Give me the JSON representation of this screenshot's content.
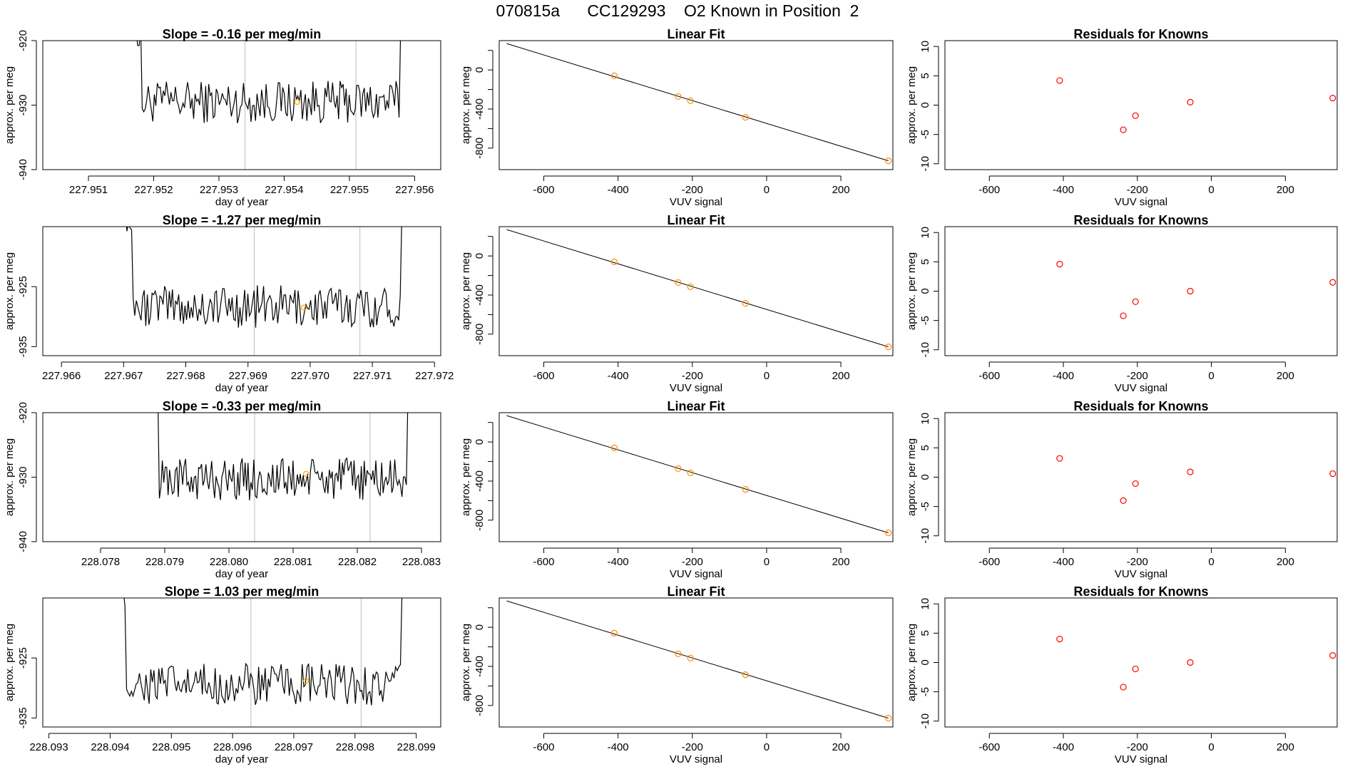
{
  "title": "070815a      CC129293    O2 Known in Position  2",
  "colors": {
    "line": "#000000",
    "grid": "#bebebe",
    "fit_point": "#ff8c00",
    "residual_point": "#ff0000",
    "marker": "#ffa500"
  },
  "chart_data": [
    {
      "type": "line",
      "row": 0,
      "title": "Slope =  -0.16  per meg/min",
      "xlabel": "day of year",
      "ylabel": "approx. per meg",
      "xlim": [
        227.9503,
        227.9564
      ],
      "ylim": [
        -940,
        -920
      ],
      "xticks": [
        227.951,
        227.952,
        227.953,
        227.954,
        227.955,
        227.956
      ],
      "yticks": [
        -940,
        -930,
        -920
      ],
      "ytick_labels": [
        "-940",
        "-930",
        "-920"
      ],
      "series_range": [
        227.9515,
        227.9559
      ],
      "vlines": [
        227.9534,
        227.9551
      ],
      "marker": [
        227.9542,
        -929.5
      ],
      "baseline": -929.5
    },
    {
      "type": "line",
      "row": 1,
      "title": "Slope =  -1.27  per meg/min",
      "xlabel": "day of year",
      "ylabel": "approx. per meg",
      "xlim": [
        227.9657,
        227.9721
      ],
      "ylim": [
        -936.5,
        -915
      ],
      "xticks": [
        227.966,
        227.967,
        227.968,
        227.969,
        227.97,
        227.971,
        227.972
      ],
      "yticks": [
        -935,
        -925
      ],
      "ytick_labels": [
        "-935",
        "-925"
      ],
      "series_range": [
        227.9668,
        227.9716
      ],
      "vlines": [
        227.9691,
        227.9708
      ],
      "marker": [
        227.9699,
        -928.5
      ],
      "baseline": -928.3
    },
    {
      "type": "line",
      "row": 2,
      "title": "Slope =  -0.33  per meg/min",
      "xlabel": "day of year",
      "ylabel": "approx. per meg",
      "xlim": [
        228.0771,
        228.0833
      ],
      "ylim": [
        -940,
        -920
      ],
      "xticks": [
        228.078,
        228.079,
        228.08,
        228.081,
        228.082,
        228.083
      ],
      "yticks": [
        -940,
        -930,
        -920
      ],
      "ytick_labels": [
        "-940",
        "-930",
        "-920"
      ],
      "series_range": [
        228.0786,
        228.0829
      ],
      "vlines": [
        228.0804,
        228.0822
      ],
      "marker": [
        228.0812,
        -929.5
      ],
      "baseline": -930.3
    },
    {
      "type": "line",
      "row": 3,
      "title": "Slope =  1.03  per meg/min",
      "xlabel": "day of year",
      "ylabel": "approx. per meg",
      "xlim": [
        228.0929,
        228.0994
      ],
      "ylim": [
        -936.5,
        -915
      ],
      "xticks": [
        228.093,
        228.094,
        228.095,
        228.096,
        228.097,
        228.098,
        228.099
      ],
      "yticks": [
        -935,
        -925
      ],
      "ytick_labels": [
        "-935",
        "-925"
      ],
      "series_range": [
        228.0939,
        228.0989
      ],
      "vlines": [
        228.0963,
        228.0981
      ],
      "marker": [
        228.0972,
        -928.8
      ],
      "baseline": -929.5
    },
    {
      "type": "scatter",
      "row": 0,
      "title": "Linear Fit",
      "xlabel": "VUV signal",
      "ylabel": "approx. per meg",
      "xlim": [
        -720,
        340
      ],
      "ylim": [
        -1020,
        300
      ],
      "xticks": [
        -600,
        -400,
        -200,
        0,
        200
      ],
      "ytick_labels_at": [
        0,
        -400,
        -800
      ],
      "ytick_labels": [
        "0",
        "-400",
        "-800"
      ],
      "yticks": [
        200,
        0,
        -200,
        -400,
        -600,
        -800
      ],
      "points": [
        [
          -410,
          -60
        ],
        [
          -238,
          -272
        ],
        [
          -205,
          -315
        ],
        [
          -57,
          -485
        ],
        [
          328,
          -930
        ]
      ],
      "fit_line": [
        [
          -700,
          270
        ],
        [
          328,
          -930
        ]
      ]
    },
    {
      "type": "scatter",
      "row": 1,
      "title": "Linear Fit",
      "xlabel": "VUV signal",
      "ylabel": "approx. per meg",
      "xlim": [
        -720,
        340
      ],
      "ylim": [
        -1020,
        300
      ],
      "xticks": [
        -600,
        -400,
        -200,
        0,
        200
      ],
      "ytick_labels_at": [
        0,
        -400,
        -800
      ],
      "ytick_labels": [
        "0",
        "-400",
        "-800"
      ],
      "yticks": [
        200,
        0,
        -200,
        -400,
        -600,
        -800
      ],
      "points": [
        [
          -410,
          -60
        ],
        [
          -238,
          -272
        ],
        [
          -205,
          -315
        ],
        [
          -57,
          -485
        ],
        [
          328,
          -930
        ]
      ],
      "fit_line": [
        [
          -700,
          270
        ],
        [
          328,
          -930
        ]
      ]
    },
    {
      "type": "scatter",
      "row": 2,
      "title": "Linear Fit",
      "xlabel": "VUV signal",
      "ylabel": "approx. per meg",
      "xlim": [
        -720,
        340
      ],
      "ylim": [
        -1020,
        300
      ],
      "xticks": [
        -600,
        -400,
        -200,
        0,
        200
      ],
      "ytick_labels_at": [
        0,
        -400,
        -800
      ],
      "ytick_labels": [
        "0",
        "-400",
        "-800"
      ],
      "yticks": [
        200,
        0,
        -200,
        -400,
        -600,
        -800
      ],
      "points": [
        [
          -410,
          -60
        ],
        [
          -238,
          -272
        ],
        [
          -205,
          -315
        ],
        [
          -57,
          -485
        ],
        [
          328,
          -930
        ]
      ],
      "fit_line": [
        [
          -700,
          270
        ],
        [
          328,
          -930
        ]
      ]
    },
    {
      "type": "scatter",
      "row": 3,
      "title": "Linear Fit",
      "xlabel": "VUV signal",
      "ylabel": "approx. per meg",
      "xlim": [
        -720,
        340
      ],
      "ylim": [
        -1020,
        300
      ],
      "xticks": [
        -600,
        -400,
        -200,
        0,
        200
      ],
      "ytick_labels_at": [
        0,
        -400,
        -800
      ],
      "ytick_labels": [
        "0",
        "-400",
        "-800"
      ],
      "yticks": [
        200,
        0,
        -200,
        -400,
        -600,
        -800
      ],
      "points": [
        [
          -410,
          -60
        ],
        [
          -238,
          -272
        ],
        [
          -205,
          -315
        ],
        [
          -57,
          -485
        ],
        [
          328,
          -930
        ]
      ],
      "fit_line": [
        [
          -700,
          270
        ],
        [
          328,
          -930
        ]
      ]
    },
    {
      "type": "scatter",
      "row": 0,
      "title": "Residuals for Knowns",
      "xlabel": "VUV signal",
      "ylabel": "approx. per meg",
      "xlim": [
        -720,
        340
      ],
      "ylim": [
        -11,
        11
      ],
      "xticks": [
        -600,
        -400,
        -200,
        0,
        200
      ],
      "yticks": [
        -10,
        -5,
        0,
        5,
        10
      ],
      "ytick_labels": [
        "-10",
        "-5",
        "0",
        "5",
        "10"
      ],
      "points": [
        [
          -410,
          4.2
        ],
        [
          -238,
          -4.2
        ],
        [
          -205,
          -1.8
        ],
        [
          -57,
          0.5
        ],
        [
          328,
          1.2
        ]
      ]
    },
    {
      "type": "scatter",
      "row": 1,
      "title": "Residuals for Knowns",
      "xlabel": "VUV signal",
      "ylabel": "approx. per meg",
      "xlim": [
        -720,
        340
      ],
      "ylim": [
        -11,
        11
      ],
      "xticks": [
        -600,
        -400,
        -200,
        0,
        200
      ],
      "yticks": [
        -10,
        -5,
        0,
        5,
        10
      ],
      "ytick_labels": [
        "-10",
        "-5",
        "0",
        "5",
        "10"
      ],
      "points": [
        [
          -410,
          4.6
        ],
        [
          -238,
          -4.2
        ],
        [
          -205,
          -1.8
        ],
        [
          -57,
          0.0
        ],
        [
          328,
          1.5
        ]
      ]
    },
    {
      "type": "scatter",
      "row": 2,
      "title": "Residuals for Knowns",
      "xlabel": "VUV signal",
      "ylabel": "approx. per meg",
      "xlim": [
        -720,
        340
      ],
      "ylim": [
        -11,
        11
      ],
      "xticks": [
        -600,
        -400,
        -200,
        0,
        200
      ],
      "yticks": [
        -10,
        -5,
        0,
        5,
        10
      ],
      "ytick_labels": [
        "-10",
        "-5",
        "0",
        "5",
        "10"
      ],
      "points": [
        [
          -410,
          3.2
        ],
        [
          -238,
          -4.0
        ],
        [
          -205,
          -1.1
        ],
        [
          -57,
          0.9
        ],
        [
          328,
          0.6
        ]
      ]
    },
    {
      "type": "scatter",
      "row": 3,
      "title": "Residuals for Knowns",
      "xlabel": "VUV signal",
      "ylabel": "approx. per meg",
      "xlim": [
        -720,
        340
      ],
      "ylim": [
        -11,
        11
      ],
      "xticks": [
        -600,
        -400,
        -200,
        0,
        200
      ],
      "yticks": [
        -10,
        -5,
        0,
        5,
        10
      ],
      "ytick_labels": [
        "-10",
        "-5",
        "0",
        "5",
        "10"
      ],
      "points": [
        [
          -410,
          4.0
        ],
        [
          -238,
          -4.2
        ],
        [
          -205,
          -1.1
        ],
        [
          -57,
          0.0
        ],
        [
          328,
          1.2
        ]
      ]
    }
  ]
}
